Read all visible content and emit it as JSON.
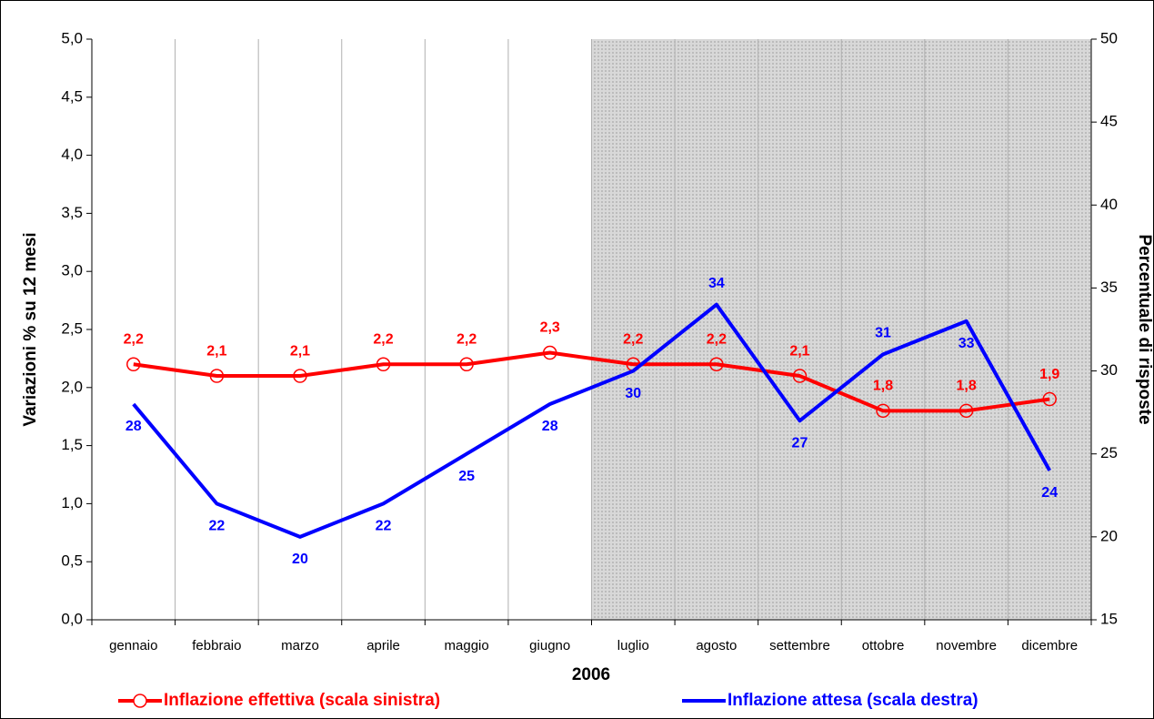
{
  "chart_data": {
    "type": "line",
    "x_label": "2006",
    "y_label": "Variazioni % su 12 mesi",
    "y2_label": "Percentuale di risposte",
    "categories": [
      "gennaio",
      "febbraio",
      "marzo",
      "aprile",
      "maggio",
      "giugno",
      "luglio",
      "agosto",
      "settembre",
      "ottobre",
      "novembre",
      "dicembre"
    ],
    "series": [
      {
        "name": "Inflazione effettiva (scala sinistra)",
        "color": "#ff0000",
        "values": [
          2.2,
          2.1,
          2.1,
          2.2,
          2.2,
          2.3,
          2.2,
          2.2,
          2.1,
          1.8,
          1.8,
          1.9
        ],
        "value_labels": [
          "2,2",
          "2,1",
          "2,1",
          "2,2",
          "2,2",
          "2,3",
          "2,2",
          "2,2",
          "2,1",
          "1,8",
          "1,8",
          "1,9"
        ]
      },
      {
        "name": "Inflazione attesa (scala destra)",
        "color": "#0000ff",
        "axis": "y2",
        "values": [
          28,
          22,
          20,
          22,
          25,
          28,
          30,
          34,
          27,
          31,
          33,
          24
        ]
      }
    ],
    "ylim": [
      0,
      5
    ],
    "yticks": [
      {
        "value": 0,
        "label": "0,0"
      },
      {
        "value": 0.5,
        "label": "0,5"
      },
      {
        "value": 1,
        "label": "1,0"
      },
      {
        "value": 1.5,
        "label": "1,5"
      },
      {
        "value": 2,
        "label": "2,0"
      },
      {
        "value": 2.5,
        "label": "2,5"
      },
      {
        "value": 3,
        "label": "3,0"
      },
      {
        "value": 3.5,
        "label": "3,5"
      },
      {
        "value": 4,
        "label": "4,0"
      },
      {
        "value": 4.5,
        "label": "4,5"
      },
      {
        "value": 5,
        "label": "5,0"
      }
    ],
    "y2lim": [
      15,
      50
    ],
    "y2ticks": [
      15,
      20,
      25,
      30,
      35,
      40,
      45,
      50
    ]
  }
}
